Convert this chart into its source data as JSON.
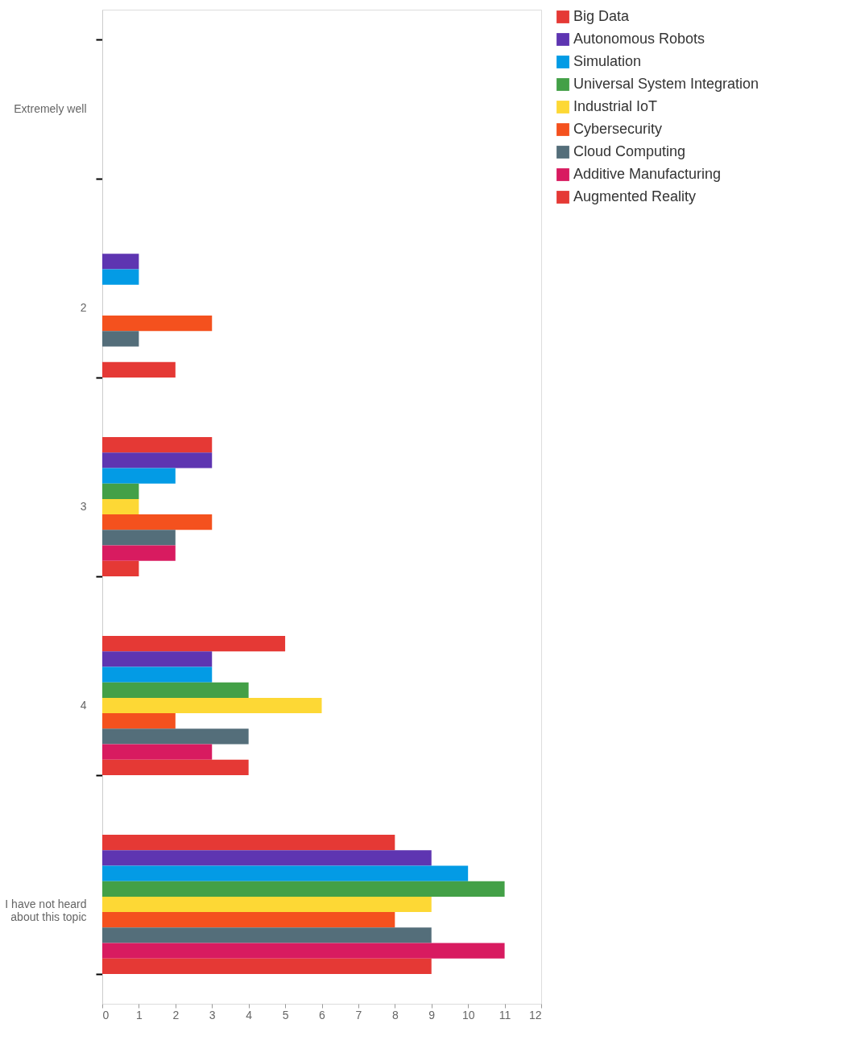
{
  "chart_data": {
    "type": "bar",
    "orientation": "horizontal",
    "categories": [
      "Extremely well",
      "2",
      "3",
      "4",
      "I have not heard about this topic"
    ],
    "series": [
      {
        "name": "Big Data",
        "color": "#e53935",
        "values": [
          null,
          null,
          3,
          5,
          8
        ]
      },
      {
        "name": "Autonomous Robots",
        "color": "#5e35b1",
        "values": [
          null,
          1,
          3,
          3,
          9
        ]
      },
      {
        "name": "Simulation",
        "color": "#039be5",
        "values": [
          null,
          1,
          2,
          3,
          10
        ]
      },
      {
        "name": "Universal System Integration",
        "color": "#43a047",
        "values": [
          null,
          null,
          1,
          4,
          11
        ]
      },
      {
        "name": "Industrial IoT",
        "color": "#fdd835",
        "values": [
          null,
          null,
          1,
          6,
          9
        ]
      },
      {
        "name": "Cybersecurity",
        "color": "#f4511e",
        "values": [
          null,
          3,
          3,
          2,
          8
        ]
      },
      {
        "name": "Cloud Computing",
        "color": "#546e7a",
        "values": [
          null,
          1,
          2,
          4,
          9
        ]
      },
      {
        "name": "Additive Manufacturing",
        "color": "#d81b60",
        "values": [
          null,
          null,
          2,
          3,
          11
        ]
      },
      {
        "name": "Augmented Reality",
        "color": "#e53935",
        "values": [
          null,
          2,
          1,
          4,
          9
        ]
      }
    ],
    "xlim": [
      0,
      12
    ],
    "xticks": [
      0,
      1,
      2,
      3,
      4,
      5,
      6,
      7,
      8,
      9,
      10,
      11,
      12
    ],
    "grid": false,
    "legend": "right"
  }
}
